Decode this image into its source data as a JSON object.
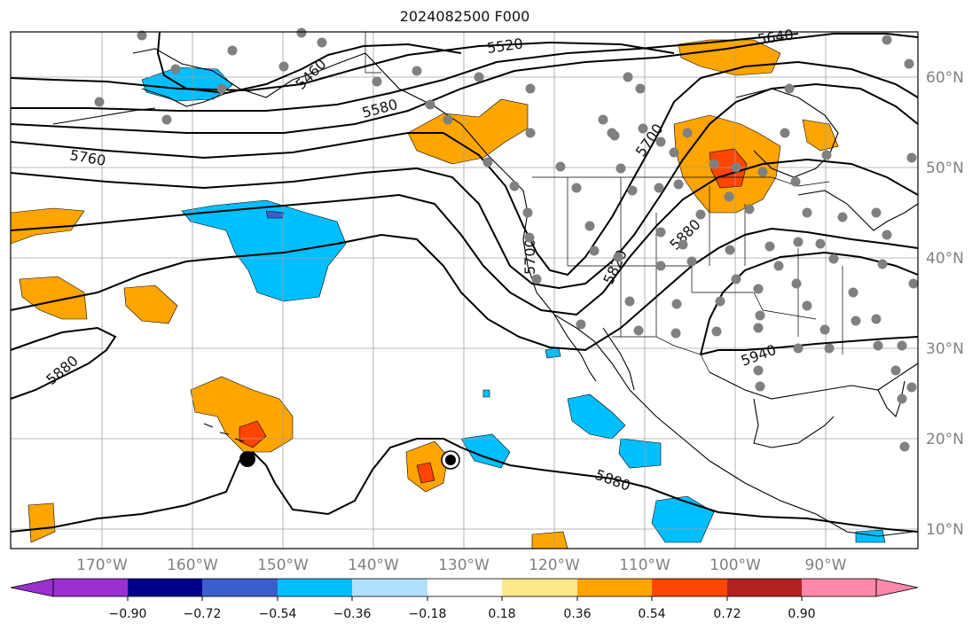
{
  "title": "2024082500 F000",
  "map": {
    "lon_labels": [
      "170°W",
      "160°W",
      "150°W",
      "140°W",
      "130°W",
      "120°W",
      "110°W",
      "100°W",
      "90°W"
    ],
    "lat_labels": [
      "60°N",
      "50°N",
      "40°N",
      "30°N",
      "20°N",
      "10°N"
    ],
    "contour_labels": [
      "5520",
      "5640",
      "5460",
      "5580",
      "5700",
      "5760",
      "5700",
      "5820",
      "5880",
      "5940",
      "5880",
      "5880"
    ],
    "colors": {
      "land_outline": "#000000",
      "station_dot": "#808080",
      "grid": "#a0a0a0"
    }
  },
  "colorbar": {
    "tick_labels": [
      "−0.90",
      "−0.72",
      "−0.54",
      "−0.36",
      "−0.18",
      "0.18",
      "0.36",
      "0.54",
      "0.72",
      "0.90"
    ],
    "colors": [
      "#9b30d0",
      "#00008b",
      "#3a5fcd",
      "#00bfff",
      "#b0e0ff",
      "#ffffff",
      "#ffe88a",
      "#ffa500",
      "#ff4500",
      "#b22222",
      "#ff88aa"
    ]
  }
}
